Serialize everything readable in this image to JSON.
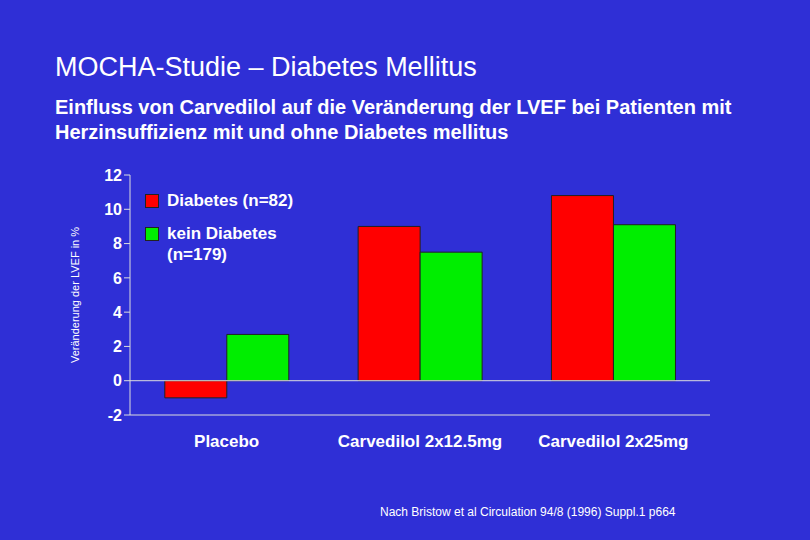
{
  "chart_data": {
    "type": "bar",
    "title": "MOCHA-Studie – Diabetes Mellitus",
    "subtitle": "Einfluss von Carvedilol auf die Veränderung der LVEF bei Patienten mit Herzinsuffizienz mit und ohne Diabetes mellitus",
    "y_label": "Veränderung der LVEF in %",
    "annotations": [
      "Nach Bristow et al Circulation 94/8 (1996) Suppl.1 p664"
    ],
    "categories": [
      "Placebo",
      "Carvedilol 2x12.5mg",
      "Carvedilol 2x25mg"
    ],
    "series": [
      {
        "name": "Diabetes (n=82)",
        "color": "#ff0000",
        "values": [
          -1,
          9,
          10.8
        ]
      },
      {
        "name": "kein Diabetes (n=179)",
        "color": "#00ee00",
        "values": [
          2.7,
          7.5,
          9.1
        ]
      }
    ],
    "ylim": [
      -2,
      12
    ],
    "yticks": [
      -2,
      0,
      2,
      4,
      6,
      8,
      10,
      12
    ],
    "legend": "upper left",
    "grid": false
  }
}
